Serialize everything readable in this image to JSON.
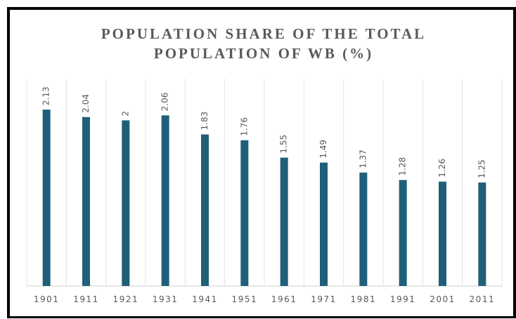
{
  "chart_data": {
    "type": "bar",
    "title": "POPULATION SHARE OF THE TOTAL POPULATION OF WB (%)",
    "categories": [
      "1901",
      "1911",
      "1921",
      "1931",
      "1941",
      "1951",
      "1961",
      "1971",
      "1981",
      "1991",
      "2001",
      "2011"
    ],
    "values": [
      2.13,
      2.04,
      2,
      2.06,
      1.83,
      1.76,
      1.55,
      1.49,
      1.37,
      1.28,
      1.26,
      1.25
    ],
    "color": "#1f5f7a",
    "grid": false
  }
}
